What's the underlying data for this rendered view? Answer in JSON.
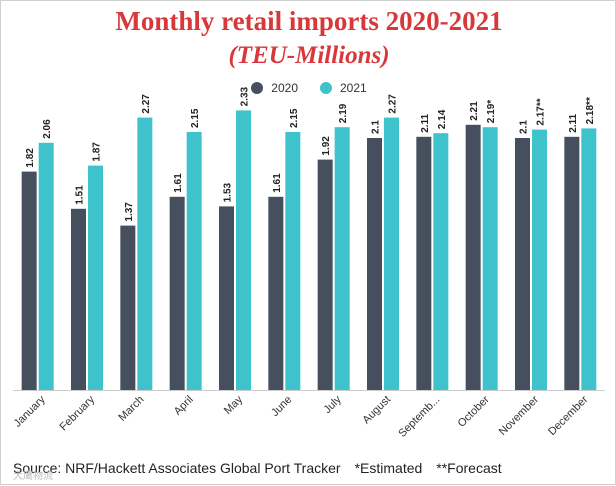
{
  "chart_data": {
    "type": "bar",
    "title": "Monthly retail imports 2020-2021",
    "subtitle": "(TEU-Millions)",
    "categories": [
      "January",
      "February",
      "March",
      "April",
      "May",
      "June",
      "July",
      "August",
      "Septemb...",
      "October",
      "November",
      "December"
    ],
    "series": [
      {
        "name": "2020",
        "color": "#454f5e",
        "values": [
          1.82,
          1.51,
          1.37,
          1.61,
          1.53,
          1.61,
          1.92,
          2.1,
          2.11,
          2.21,
          2.1,
          2.11
        ],
        "labels": [
          "1.82",
          "1.51",
          "1.37",
          "1.61",
          "1.53",
          "1.61",
          "1.92",
          "2.1",
          "2.11",
          "2.21",
          "2.1",
          "2.11"
        ]
      },
      {
        "name": "2021",
        "color": "#3ec3cc",
        "values": [
          2.06,
          1.87,
          2.27,
          2.15,
          2.33,
          2.15,
          2.19,
          2.27,
          2.14,
          2.19,
          2.17,
          2.18
        ],
        "labels": [
          "2.06",
          "1.87",
          "2.27",
          "2.15",
          "2.33",
          "2.15",
          "2.19",
          "2.27",
          "2.14",
          "2.19*",
          "2.17**",
          "2.18**"
        ]
      }
    ],
    "ylim": [
      0,
      2.45
    ],
    "xlabel": "",
    "ylabel": "",
    "grid": false,
    "legend_position": "top-center"
  },
  "footer": {
    "source": "Source: NRF/Hackett Associates Global Port Tracker",
    "estimated": "*Estimated",
    "forecast": "**Forecast"
  },
  "watermark": "大鹰物流"
}
